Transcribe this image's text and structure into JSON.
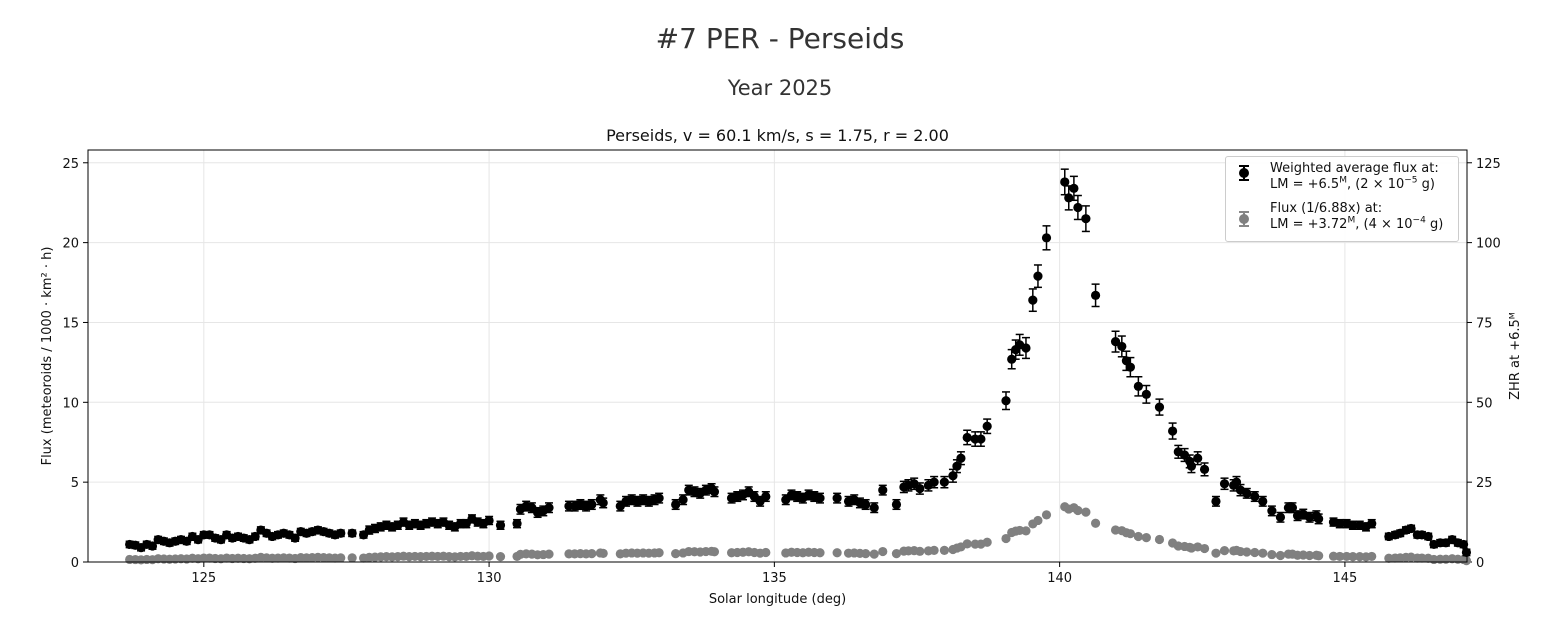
{
  "header": {
    "title": "#7 PER - Perseids",
    "subtitle": "Year 2025"
  },
  "chart_data": {
    "type": "scatter",
    "title": "Perseids, v = 60.1 km/s, s = 1.75, r = 2.00",
    "xlabel": "Solar longitude (deg)",
    "ylabel": "Flux (meteoroids / 1000 · km² · h)",
    "ylabel_right": "ZHR at +6.5ᴹ",
    "xlim": [
      122.97,
      147.14
    ],
    "ylim": [
      0,
      25.8
    ],
    "ylim_right": [
      0,
      129
    ],
    "xticks": [
      125,
      130,
      135,
      140,
      145
    ],
    "yticks": [
      0,
      5,
      10,
      15,
      20,
      25
    ],
    "yticks_right": [
      0,
      25,
      50,
      75,
      100,
      125
    ],
    "grid": true,
    "legend_position": "top-right",
    "colors": {
      "main": "#000000",
      "scaled": "#808080"
    },
    "legend": [
      {
        "line1": "Weighted average flux at:",
        "line2_pre": "LM = +6.5",
        "line2_sup": "M",
        "line2_mid": ", (2 × 10",
        "line2_exp": "−5",
        "line2_post": " g)"
      },
      {
        "line1": "Flux (1/6.88x) at:",
        "line2_pre": "LM = +3.72",
        "line2_sup": "M",
        "line2_mid": ", (4 × 10",
        "line2_exp": "−4",
        "line2_post": " g)"
      }
    ],
    "scaled_series_factor": 6.88,
    "series_main": [
      [
        123.7,
        1.1,
        0.2
      ],
      [
        123.8,
        1.05,
        0.2
      ],
      [
        123.9,
        0.9,
        0.2
      ],
      [
        124.0,
        1.1,
        0.2
      ],
      [
        124.1,
        1.0,
        0.2
      ],
      [
        124.2,
        1.4,
        0.2
      ],
      [
        124.3,
        1.3,
        0.2
      ],
      [
        124.4,
        1.2,
        0.2
      ],
      [
        124.5,
        1.3,
        0.2
      ],
      [
        124.6,
        1.4,
        0.2
      ],
      [
        124.7,
        1.3,
        0.2
      ],
      [
        124.8,
        1.6,
        0.2
      ],
      [
        124.9,
        1.4,
        0.2
      ],
      [
        125.0,
        1.7,
        0.2
      ],
      [
        125.1,
        1.7,
        0.2
      ],
      [
        125.2,
        1.5,
        0.2
      ],
      [
        125.3,
        1.4,
        0.2
      ],
      [
        125.4,
        1.7,
        0.2
      ],
      [
        125.5,
        1.5,
        0.2
      ],
      [
        125.6,
        1.6,
        0.2
      ],
      [
        125.7,
        1.5,
        0.2
      ],
      [
        125.8,
        1.4,
        0.2
      ],
      [
        125.9,
        1.6,
        0.2
      ],
      [
        126.0,
        2.0,
        0.2
      ],
      [
        126.1,
        1.8,
        0.2
      ],
      [
        126.2,
        1.6,
        0.2
      ],
      [
        126.3,
        1.7,
        0.2
      ],
      [
        126.4,
        1.8,
        0.2
      ],
      [
        126.5,
        1.7,
        0.2
      ],
      [
        126.6,
        1.5,
        0.2
      ],
      [
        126.7,
        1.9,
        0.2
      ],
      [
        126.8,
        1.8,
        0.2
      ],
      [
        126.9,
        1.9,
        0.2
      ],
      [
        127.0,
        2.0,
        0.2
      ],
      [
        127.1,
        1.9,
        0.2
      ],
      [
        127.2,
        1.8,
        0.2
      ],
      [
        127.3,
        1.7,
        0.2
      ],
      [
        127.4,
        1.8,
        0.2
      ],
      [
        127.6,
        1.8,
        0.2
      ],
      [
        127.8,
        1.7,
        0.2
      ],
      [
        127.9,
        2.0,
        0.25
      ],
      [
        128.0,
        2.1,
        0.25
      ],
      [
        128.1,
        2.2,
        0.25
      ],
      [
        128.2,
        2.3,
        0.25
      ],
      [
        128.3,
        2.2,
        0.25
      ],
      [
        128.4,
        2.3,
        0.25
      ],
      [
        128.5,
        2.5,
        0.25
      ],
      [
        128.6,
        2.3,
        0.25
      ],
      [
        128.7,
        2.4,
        0.25
      ],
      [
        128.8,
        2.3,
        0.25
      ],
      [
        128.9,
        2.4,
        0.25
      ],
      [
        129.0,
        2.5,
        0.25
      ],
      [
        129.1,
        2.4,
        0.25
      ],
      [
        129.2,
        2.5,
        0.25
      ],
      [
        129.3,
        2.3,
        0.25
      ],
      [
        129.4,
        2.2,
        0.25
      ],
      [
        129.5,
        2.4,
        0.25
      ],
      [
        129.6,
        2.4,
        0.25
      ],
      [
        129.7,
        2.7,
        0.25
      ],
      [
        129.8,
        2.5,
        0.25
      ],
      [
        129.9,
        2.4,
        0.25
      ],
      [
        130.0,
        2.6,
        0.25
      ],
      [
        130.2,
        2.3,
        0.25
      ],
      [
        130.49,
        2.4,
        0.25
      ],
      [
        130.55,
        3.3,
        0.3
      ],
      [
        130.65,
        3.5,
        0.3
      ],
      [
        130.75,
        3.4,
        0.3
      ],
      [
        130.85,
        3.1,
        0.3
      ],
      [
        130.95,
        3.2,
        0.3
      ],
      [
        131.05,
        3.4,
        0.3
      ],
      [
        131.4,
        3.5,
        0.3
      ],
      [
        131.5,
        3.5,
        0.3
      ],
      [
        131.6,
        3.6,
        0.3
      ],
      [
        131.7,
        3.5,
        0.3
      ],
      [
        131.8,
        3.6,
        0.3
      ],
      [
        131.95,
        3.9,
        0.3
      ],
      [
        132.0,
        3.7,
        0.3
      ],
      [
        132.3,
        3.5,
        0.3
      ],
      [
        132.4,
        3.8,
        0.3
      ],
      [
        132.5,
        3.9,
        0.3
      ],
      [
        132.6,
        3.8,
        0.3
      ],
      [
        132.7,
        3.9,
        0.3
      ],
      [
        132.8,
        3.8,
        0.3
      ],
      [
        132.9,
        3.9,
        0.3
      ],
      [
        132.98,
        4.0,
        0.3
      ],
      [
        133.27,
        3.6,
        0.3
      ],
      [
        133.4,
        3.9,
        0.3
      ],
      [
        133.5,
        4.5,
        0.3
      ],
      [
        133.6,
        4.4,
        0.3
      ],
      [
        133.7,
        4.3,
        0.3
      ],
      [
        133.8,
        4.5,
        0.3
      ],
      [
        133.9,
        4.6,
        0.3
      ],
      [
        133.95,
        4.4,
        0.3
      ],
      [
        134.25,
        4.0,
        0.3
      ],
      [
        134.35,
        4.1,
        0.3
      ],
      [
        134.45,
        4.2,
        0.3
      ],
      [
        134.55,
        4.4,
        0.3
      ],
      [
        134.65,
        4.1,
        0.3
      ],
      [
        134.75,
        3.8,
        0.3
      ],
      [
        134.85,
        4.1,
        0.3
      ],
      [
        135.2,
        3.9,
        0.3
      ],
      [
        135.3,
        4.2,
        0.3
      ],
      [
        135.4,
        4.1,
        0.3
      ],
      [
        135.5,
        4.0,
        0.3
      ],
      [
        135.6,
        4.2,
        0.3
      ],
      [
        135.7,
        4.1,
        0.3
      ],
      [
        135.8,
        4.0,
        0.3
      ],
      [
        136.1,
        4.0,
        0.3
      ],
      [
        136.3,
        3.8,
        0.3
      ],
      [
        136.4,
        3.9,
        0.3
      ],
      [
        136.5,
        3.7,
        0.3
      ],
      [
        136.6,
        3.6,
        0.3
      ],
      [
        136.75,
        3.4,
        0.3
      ],
      [
        136.9,
        4.5,
        0.3
      ],
      [
        137.14,
        3.6,
        0.3
      ],
      [
        137.27,
        4.7,
        0.35
      ],
      [
        137.35,
        4.8,
        0.35
      ],
      [
        137.45,
        4.9,
        0.35
      ],
      [
        137.55,
        4.6,
        0.35
      ],
      [
        137.7,
        4.8,
        0.35
      ],
      [
        137.8,
        5.0,
        0.35
      ],
      [
        137.98,
        5.0,
        0.35
      ],
      [
        138.13,
        5.4,
        0.4
      ],
      [
        138.2,
        6.0,
        0.4
      ],
      [
        138.27,
        6.5,
        0.4
      ],
      [
        138.38,
        7.8,
        0.45
      ],
      [
        138.52,
        7.7,
        0.45
      ],
      [
        138.62,
        7.7,
        0.45
      ],
      [
        138.73,
        8.5,
        0.45
      ],
      [
        139.06,
        10.1,
        0.55
      ],
      [
        139.16,
        12.7,
        0.6
      ],
      [
        139.23,
        13.3,
        0.6
      ],
      [
        139.3,
        13.6,
        0.65
      ],
      [
        139.41,
        13.4,
        0.65
      ],
      [
        139.53,
        16.4,
        0.7
      ],
      [
        139.62,
        17.9,
        0.7
      ],
      [
        139.77,
        20.3,
        0.75
      ],
      [
        140.09,
        23.8,
        0.8
      ],
      [
        140.16,
        22.8,
        0.75
      ],
      [
        140.25,
        23.4,
        0.75
      ],
      [
        140.32,
        22.2,
        0.75
      ],
      [
        140.46,
        21.5,
        0.8
      ],
      [
        140.63,
        16.7,
        0.7
      ],
      [
        140.98,
        13.8,
        0.65
      ],
      [
        141.09,
        13.5,
        0.65
      ],
      [
        141.17,
        12.6,
        0.6
      ],
      [
        141.24,
        12.2,
        0.6
      ],
      [
        141.38,
        11.0,
        0.6
      ],
      [
        141.52,
        10.5,
        0.55
      ],
      [
        141.75,
        9.7,
        0.5
      ],
      [
        141.98,
        8.2,
        0.5
      ],
      [
        142.08,
        6.9,
        0.4
      ],
      [
        142.19,
        6.7,
        0.4
      ],
      [
        142.28,
        6.3,
        0.4
      ],
      [
        142.31,
        6.0,
        0.4
      ],
      [
        142.42,
        6.5,
        0.4
      ],
      [
        142.54,
        5.8,
        0.4
      ],
      [
        142.74,
        3.8,
        0.3
      ],
      [
        142.89,
        4.9,
        0.35
      ],
      [
        143.05,
        4.8,
        0.35
      ],
      [
        143.1,
        5.0,
        0.35
      ],
      [
        143.17,
        4.5,
        0.35
      ],
      [
        143.28,
        4.3,
        0.3
      ],
      [
        143.42,
        4.1,
        0.3
      ],
      [
        143.56,
        3.8,
        0.3
      ],
      [
        143.72,
        3.2,
        0.3
      ],
      [
        143.87,
        2.8,
        0.3
      ],
      [
        144.01,
        3.4,
        0.3
      ],
      [
        144.08,
        3.4,
        0.3
      ],
      [
        144.17,
        2.9,
        0.3
      ],
      [
        144.27,
        3.0,
        0.3
      ],
      [
        144.38,
        2.8,
        0.3
      ],
      [
        144.5,
        2.9,
        0.3
      ],
      [
        144.54,
        2.7,
        0.3
      ],
      [
        144.8,
        2.5,
        0.25
      ],
      [
        144.91,
        2.4,
        0.25
      ],
      [
        145.03,
        2.4,
        0.25
      ],
      [
        145.14,
        2.3,
        0.25
      ],
      [
        145.26,
        2.3,
        0.25
      ],
      [
        145.37,
        2.2,
        0.25
      ],
      [
        145.47,
        2.4,
        0.25
      ],
      [
        145.77,
        1.6,
        0.2
      ],
      [
        145.88,
        1.7,
        0.2
      ],
      [
        145.97,
        1.8,
        0.2
      ],
      [
        146.07,
        2.0,
        0.2
      ],
      [
        146.16,
        2.1,
        0.2
      ],
      [
        146.27,
        1.7,
        0.2
      ],
      [
        146.35,
        1.7,
        0.2
      ],
      [
        146.46,
        1.6,
        0.2
      ],
      [
        146.56,
        1.1,
        0.2
      ],
      [
        146.67,
        1.2,
        0.2
      ],
      [
        146.77,
        1.2,
        0.2
      ],
      [
        146.88,
        1.4,
        0.2
      ],
      [
        146.98,
        1.2,
        0.2
      ],
      [
        147.08,
        1.1,
        0.2
      ],
      [
        147.13,
        0.6,
        0.2
      ]
    ]
  }
}
